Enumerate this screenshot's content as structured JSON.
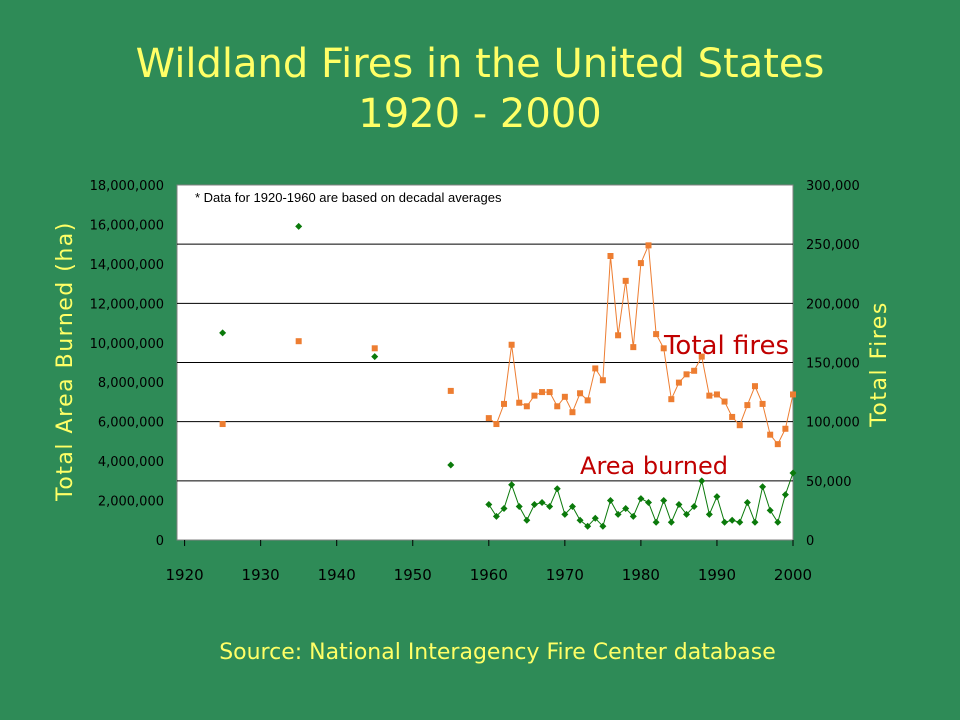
{
  "title": {
    "line1": "Wildland Fires in the United States",
    "line2": "1920 - 2000"
  },
  "source": "Source:  National Interagency Fire Center database",
  "colors": {
    "background": "#2e8b57",
    "title": "#ffff66",
    "plot_background": "#ffffff",
    "total_fires": "#ed7d31",
    "area_burned": "#0b7a0b",
    "annotation_red": "#c00000"
  },
  "chart_data": {
    "type": "scatter",
    "note": "* Data for 1920-1960 are based on decadal averages",
    "y_left_label": "Total Area Burned (ha)",
    "y_right_label": "Total Fires",
    "x_ticks": [
      "1920",
      "1930",
      "1940",
      "1950",
      "1960",
      "1970",
      "1980",
      "1990",
      "2000"
    ],
    "y_left_ticks": [
      "0",
      "2,000,000",
      "4,000,000",
      "6,000,000",
      "8,000,000",
      "10,000,000",
      "12,000,000",
      "14,000,000",
      "16,000,000",
      "18,000,000"
    ],
    "y_right_ticks": [
      "0",
      "50,000",
      "100,000",
      "150,000",
      "200,000",
      "250,000",
      "300,000"
    ],
    "x_range": [
      1919,
      2000
    ],
    "y_left_range": [
      0,
      18000000
    ],
    "y_right_range": [
      0,
      300000
    ],
    "grid": "horizontal lines at right-axis ticks",
    "series": [
      {
        "name": "Total fires",
        "axis": "right",
        "decadal_points": [
          {
            "x": 1925,
            "y": 98000
          },
          {
            "x": 1935,
            "y": 168000
          },
          {
            "x": 1945,
            "y": 162000
          },
          {
            "x": 1955,
            "y": 126000
          }
        ],
        "annual_points": [
          {
            "x": 1960,
            "y": 103000
          },
          {
            "x": 1961,
            "y": 98000
          },
          {
            "x": 1962,
            "y": 115000
          },
          {
            "x": 1963,
            "y": 165000
          },
          {
            "x": 1964,
            "y": 116000
          },
          {
            "x": 1965,
            "y": 113000
          },
          {
            "x": 1966,
            "y": 122000
          },
          {
            "x": 1967,
            "y": 125000
          },
          {
            "x": 1968,
            "y": 125000
          },
          {
            "x": 1969,
            "y": 113000
          },
          {
            "x": 1970,
            "y": 121000
          },
          {
            "x": 1971,
            "y": 108000
          },
          {
            "x": 1972,
            "y": 124000
          },
          {
            "x": 1973,
            "y": 118000
          },
          {
            "x": 1974,
            "y": 145000
          },
          {
            "x": 1975,
            "y": 135000
          },
          {
            "x": 1976,
            "y": 240000
          },
          {
            "x": 1977,
            "y": 173000
          },
          {
            "x": 1978,
            "y": 219000
          },
          {
            "x": 1979,
            "y": 163000
          },
          {
            "x": 1980,
            "y": 234000
          },
          {
            "x": 1981,
            "y": 249000
          },
          {
            "x": 1982,
            "y": 174000
          },
          {
            "x": 1983,
            "y": 162000
          },
          {
            "x": 1984,
            "y": 119000
          },
          {
            "x": 1985,
            "y": 133000
          },
          {
            "x": 1986,
            "y": 140000
          },
          {
            "x": 1987,
            "y": 143000
          },
          {
            "x": 1988,
            "y": 155000
          },
          {
            "x": 1989,
            "y": 122000
          },
          {
            "x": 1990,
            "y": 123000
          },
          {
            "x": 1991,
            "y": 117000
          },
          {
            "x": 1992,
            "y": 104000
          },
          {
            "x": 1993,
            "y": 97000
          },
          {
            "x": 1994,
            "y": 114000
          },
          {
            "x": 1995,
            "y": 130000
          },
          {
            "x": 1996,
            "y": 115000
          },
          {
            "x": 1997,
            "y": 89000
          },
          {
            "x": 1998,
            "y": 81000
          },
          {
            "x": 1999,
            "y": 94000
          },
          {
            "x": 2000,
            "y": 123000
          }
        ]
      },
      {
        "name": "Area burned",
        "axis": "left",
        "decadal_points": [
          {
            "x": 1925,
            "y": 10500000
          },
          {
            "x": 1935,
            "y": 15900000
          },
          {
            "x": 1945,
            "y": 9300000
          },
          {
            "x": 1955,
            "y": 3800000
          }
        ],
        "annual_points": [
          {
            "x": 1960,
            "y": 1800000
          },
          {
            "x": 1961,
            "y": 1200000
          },
          {
            "x": 1962,
            "y": 1600000
          },
          {
            "x": 1963,
            "y": 2800000
          },
          {
            "x": 1964,
            "y": 1700000
          },
          {
            "x": 1965,
            "y": 1000000
          },
          {
            "x": 1966,
            "y": 1800000
          },
          {
            "x": 1967,
            "y": 1900000
          },
          {
            "x": 1968,
            "y": 1700000
          },
          {
            "x": 1969,
            "y": 2600000
          },
          {
            "x": 1970,
            "y": 1300000
          },
          {
            "x": 1971,
            "y": 1700000
          },
          {
            "x": 1972,
            "y": 1000000
          },
          {
            "x": 1973,
            "y": 700000
          },
          {
            "x": 1974,
            "y": 1100000
          },
          {
            "x": 1975,
            "y": 700000
          },
          {
            "x": 1976,
            "y": 2000000
          },
          {
            "x": 1977,
            "y": 1300000
          },
          {
            "x": 1978,
            "y": 1600000
          },
          {
            "x": 1979,
            "y": 1200000
          },
          {
            "x": 1980,
            "y": 2100000
          },
          {
            "x": 1981,
            "y": 1900000
          },
          {
            "x": 1982,
            "y": 900000
          },
          {
            "x": 1983,
            "y": 2000000
          },
          {
            "x": 1984,
            "y": 900000
          },
          {
            "x": 1985,
            "y": 1800000
          },
          {
            "x": 1986,
            "y": 1300000
          },
          {
            "x": 1987,
            "y": 1700000
          },
          {
            "x": 1988,
            "y": 3000000
          },
          {
            "x": 1989,
            "y": 1300000
          },
          {
            "x": 1990,
            "y": 2200000
          },
          {
            "x": 1991,
            "y": 900000
          },
          {
            "x": 1992,
            "y": 1000000
          },
          {
            "x": 1993,
            "y": 900000
          },
          {
            "x": 1994,
            "y": 1900000
          },
          {
            "x": 1995,
            "y": 900000
          },
          {
            "x": 1996,
            "y": 2700000
          },
          {
            "x": 1997,
            "y": 1500000
          },
          {
            "x": 1998,
            "y": 900000
          },
          {
            "x": 1999,
            "y": 2300000
          },
          {
            "x": 2000,
            "y": 3400000
          }
        ]
      }
    ]
  }
}
